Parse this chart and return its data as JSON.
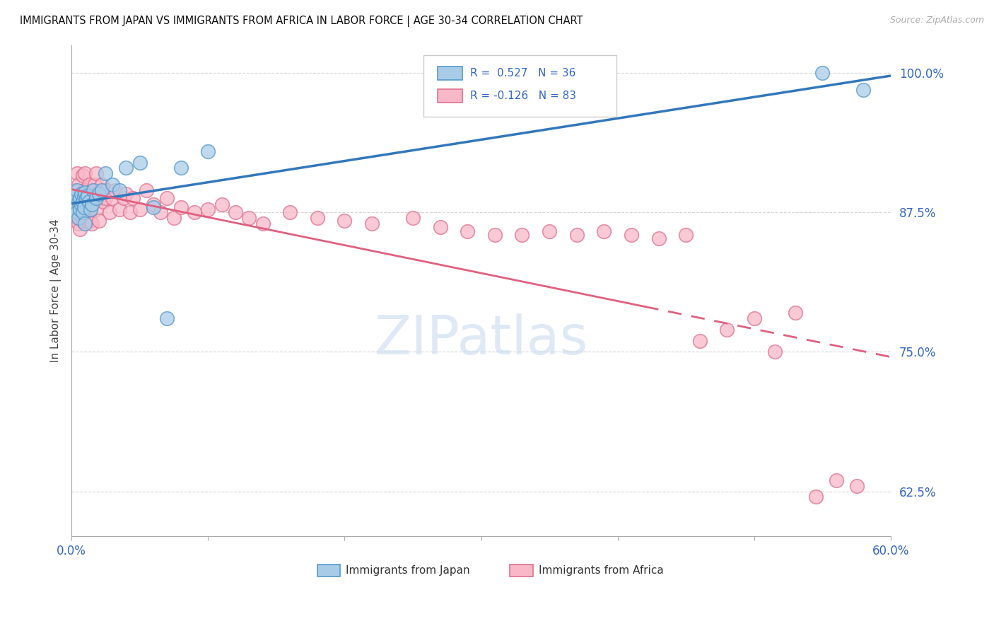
{
  "title": "IMMIGRANTS FROM JAPAN VS IMMIGRANTS FROM AFRICA IN LABOR FORCE | AGE 30-34 CORRELATION CHART",
  "source": "Source: ZipAtlas.com",
  "ylabel": "In Labor Force | Age 30-34",
  "xlim": [
    0.0,
    0.6
  ],
  "ylim": [
    0.585,
    1.025
  ],
  "yticks_right": [
    1.0,
    0.875,
    0.75,
    0.625
  ],
  "ytick_labels_right": [
    "100.0%",
    "87.5%",
    "75.0%",
    "62.5%"
  ],
  "R_japan": 0.527,
  "N_japan": 36,
  "R_africa": -0.126,
  "N_africa": 83,
  "color_japan_face": "#a8cce8",
  "color_japan_edge": "#5599cc",
  "color_africa_face": "#f8b8c8",
  "color_africa_edge": "#e07090",
  "color_japan_line": "#3377bb",
  "color_africa_line": "#e06080",
  "legend_japan": "Immigrants from Japan",
  "legend_africa": "Immigrants from Africa",
  "japan_x": [
    0.002,
    0.003,
    0.004,
    0.004,
    0.005,
    0.005,
    0.006,
    0.006,
    0.007,
    0.007,
    0.008,
    0.008,
    0.009,
    0.009,
    0.01,
    0.01,
    0.011,
    0.012,
    0.013,
    0.014,
    0.015,
    0.016,
    0.018,
    0.02,
    0.022,
    0.025,
    0.03,
    0.035,
    0.04,
    0.05,
    0.06,
    0.07,
    0.08,
    0.1,
    0.55,
    0.58
  ],
  "japan_y": [
    0.89,
    0.88,
    0.895,
    0.875,
    0.885,
    0.87,
    0.888,
    0.878,
    0.892,
    0.882,
    0.885,
    0.875,
    0.89,
    0.88,
    0.893,
    0.865,
    0.888,
    0.89,
    0.885,
    0.878,
    0.882,
    0.895,
    0.888,
    0.892,
    0.895,
    0.91,
    0.9,
    0.895,
    0.915,
    0.92,
    0.88,
    0.78,
    0.915,
    0.93,
    1.0,
    0.985
  ],
  "africa_x": [
    0.002,
    0.003,
    0.004,
    0.004,
    0.005,
    0.005,
    0.006,
    0.006,
    0.007,
    0.007,
    0.008,
    0.008,
    0.008,
    0.009,
    0.009,
    0.01,
    0.01,
    0.01,
    0.011,
    0.011,
    0.012,
    0.012,
    0.013,
    0.013,
    0.014,
    0.014,
    0.015,
    0.015,
    0.016,
    0.017,
    0.018,
    0.018,
    0.019,
    0.02,
    0.02,
    0.022,
    0.023,
    0.025,
    0.026,
    0.028,
    0.03,
    0.032,
    0.035,
    0.038,
    0.04,
    0.043,
    0.045,
    0.05,
    0.055,
    0.06,
    0.065,
    0.07,
    0.075,
    0.08,
    0.09,
    0.1,
    0.11,
    0.12,
    0.13,
    0.14,
    0.16,
    0.18,
    0.2,
    0.22,
    0.25,
    0.27,
    0.29,
    0.31,
    0.33,
    0.35,
    0.37,
    0.39,
    0.41,
    0.43,
    0.45,
    0.46,
    0.48,
    0.5,
    0.515,
    0.53,
    0.545,
    0.56,
    0.575
  ],
  "africa_y": [
    0.895,
    0.875,
    0.91,
    0.87,
    0.9,
    0.865,
    0.888,
    0.86,
    0.892,
    0.872,
    0.908,
    0.888,
    0.868,
    0.895,
    0.875,
    0.91,
    0.89,
    0.87,
    0.895,
    0.875,
    0.888,
    0.868,
    0.9,
    0.88,
    0.888,
    0.868,
    0.895,
    0.865,
    0.888,
    0.9,
    0.91,
    0.878,
    0.892,
    0.888,
    0.868,
    0.9,
    0.885,
    0.888,
    0.895,
    0.875,
    0.888,
    0.895,
    0.878,
    0.888,
    0.892,
    0.875,
    0.888,
    0.878,
    0.895,
    0.882,
    0.875,
    0.888,
    0.87,
    0.88,
    0.875,
    0.878,
    0.882,
    0.875,
    0.87,
    0.865,
    0.875,
    0.87,
    0.868,
    0.865,
    0.87,
    0.862,
    0.858,
    0.855,
    0.855,
    0.858,
    0.855,
    0.858,
    0.855,
    0.852,
    0.855,
    0.76,
    0.77,
    0.78,
    0.75,
    0.785,
    0.62,
    0.635,
    0.63
  ],
  "background_color": "#ffffff",
  "grid_color": "#cccccc"
}
